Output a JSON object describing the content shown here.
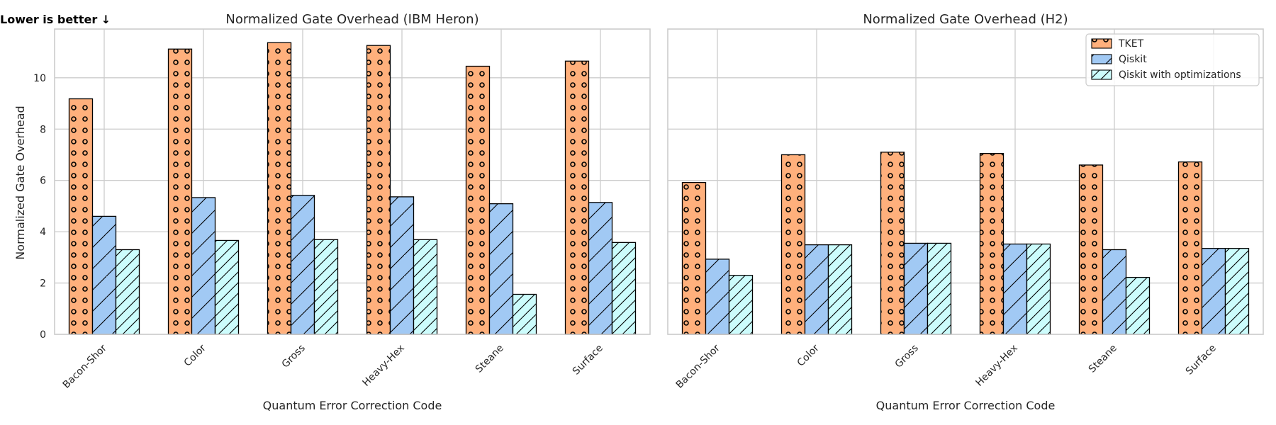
{
  "note": "Lower is better ↓",
  "colors": {
    "TKET": "#ffb07c",
    "Qiskit": "#a1c9f4",
    "Qiskit with optimizations": "#ccfcfc"
  },
  "chart_data": [
    {
      "type": "bar",
      "title": "Normalized Gate Overhead (IBM Heron)",
      "xlabel": "Quantum Error Correction Code",
      "ylabel": "Normalized Gate Overhead",
      "ylim": [
        0,
        11.9
      ],
      "yticks": [
        0,
        2,
        4,
        6,
        8,
        10
      ],
      "grid": true,
      "categories": [
        "Bacon-Shor",
        "Color",
        "Gross",
        "Heavy-Hex",
        "Steane",
        "Surface"
      ],
      "series": [
        {
          "name": "TKET",
          "values": [
            9.18,
            11.12,
            11.37,
            11.26,
            10.45,
            10.65
          ]
        },
        {
          "name": "Qiskit",
          "values": [
            4.6,
            5.33,
            5.42,
            5.36,
            5.09,
            5.14
          ]
        },
        {
          "name": "Qiskit with optimizations",
          "values": [
            3.3,
            3.66,
            3.69,
            3.69,
            1.56,
            3.58
          ]
        }
      ]
    },
    {
      "type": "bar",
      "title": "Normalized Gate Overhead (H2)",
      "xlabel": "Quantum Error Correction Code",
      "ylabel": "",
      "ylim": [
        0,
        11.9
      ],
      "grid": true,
      "legend_position": "top-right",
      "categories": [
        "Bacon-Shor",
        "Color",
        "Gross",
        "Heavy-Hex",
        "Steane",
        "Surface"
      ],
      "series": [
        {
          "name": "TKET",
          "values": [
            5.92,
            7.0,
            7.1,
            7.05,
            6.6,
            6.72
          ]
        },
        {
          "name": "Qiskit",
          "values": [
            2.93,
            3.49,
            3.55,
            3.52,
            3.3,
            3.35
          ]
        },
        {
          "name": "Qiskit with optimizations",
          "values": [
            2.3,
            3.49,
            3.55,
            3.52,
            2.22,
            3.35
          ]
        }
      ]
    }
  ]
}
